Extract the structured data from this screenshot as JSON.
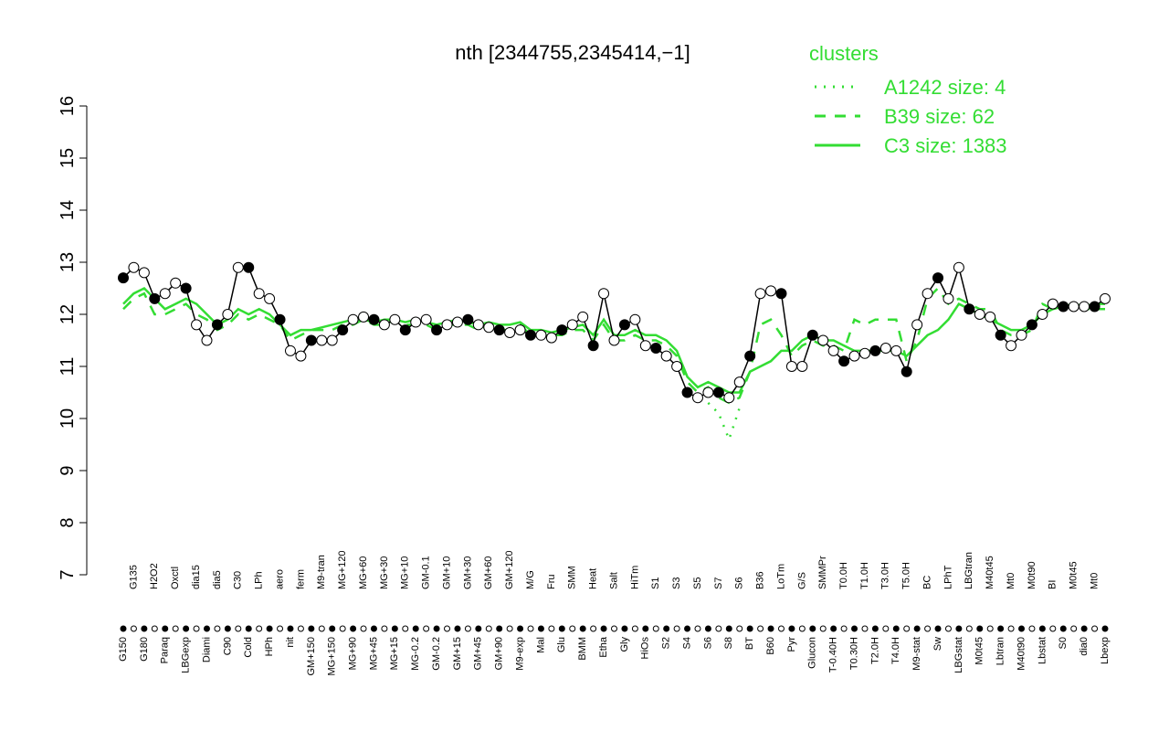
{
  "chart_data": {
    "type": "line",
    "title": "nth [2344755,2345414,−1]",
    "legend_title": "clusters",
    "legend_position": "top-right",
    "ylim": [
      7,
      16
    ],
    "yticks": [
      7,
      8,
      9,
      10,
      11,
      12,
      13,
      14,
      15,
      16
    ],
    "categories": [
      "G150",
      "G135",
      "G180",
      "H2O2",
      "Paraq",
      "Oxctl",
      "LBGexp",
      "dia15",
      "Diami",
      "dia5",
      "C90",
      "C30",
      "Cold",
      "LPh",
      "HPh",
      "aero",
      "nit",
      "ferm",
      "GM+150",
      "M9-tran",
      "MG+150",
      "MG+120",
      "MG+90",
      "MG+60",
      "MG+45",
      "MG+30",
      "MG+15",
      "MG+10",
      "MG-0.2",
      "GM-0.1",
      "GM-0.2",
      "GM+10",
      "GM+15",
      "GM+30",
      "GM+45",
      "GM+60",
      "GM+90",
      "GM+120",
      "M9-exp",
      "M/G",
      "Mal",
      "Fru",
      "Glu",
      "SMM",
      "BMM",
      "Heat",
      "Etha",
      "Salt",
      "Gly",
      "HiTm",
      "HiOs",
      "S1",
      "S2",
      "S3",
      "S4",
      "S5",
      "S6",
      "S7",
      "S8",
      "S6",
      "BT",
      "B36",
      "B60",
      "LoTm",
      "Pyr",
      "G/S",
      "Glucon",
      "SMMPr",
      "T-0.40H",
      "T0.0H",
      "T0.30H",
      "T1.0H",
      "T2.0H",
      "T3.0H",
      "T4.0H",
      "T5.0H",
      "M9-stat",
      "BC",
      "Sw",
      "LPhT",
      "LBGstat",
      "LBGtran",
      "M0t45",
      "M40t45",
      "Lbtran",
      "Mt0",
      "M40t90",
      "M0t90",
      "Lbstat",
      "BI",
      "S0",
      "M0t45",
      "dia0",
      "Mt0",
      "Lbexp"
    ],
    "points": {
      "color": "#000000",
      "values": [
        12.7,
        12.9,
        12.8,
        12.3,
        12.4,
        12.6,
        12.5,
        11.8,
        11.5,
        11.8,
        12.0,
        12.9,
        12.9,
        12.4,
        12.3,
        11.9,
        11.3,
        11.2,
        11.5,
        11.5,
        11.5,
        11.7,
        11.9,
        11.95,
        11.9,
        11.8,
        11.9,
        11.7,
        11.85,
        11.9,
        11.7,
        11.8,
        11.85,
        11.9,
        11.8,
        11.75,
        11.7,
        11.65,
        11.7,
        11.6,
        11.6,
        11.55,
        11.7,
        11.8,
        11.95,
        11.4,
        12.4,
        11.5,
        11.8,
        11.9,
        11.4,
        11.35,
        11.2,
        11.0,
        10.5,
        10.4,
        10.5,
        10.5,
        10.4,
        10.7,
        11.2,
        12.4,
        12.45,
        12.4,
        11.0,
        11.0,
        11.6,
        11.5,
        11.3,
        11.1,
        11.2,
        11.25,
        11.3,
        11.35,
        11.3,
        10.9,
        11.8,
        12.4,
        12.7,
        12.3,
        12.9,
        12.1,
        12.0,
        11.95,
        11.6,
        11.4,
        11.6,
        11.8,
        12.0,
        12.2,
        12.15,
        12.15,
        12.15,
        12.15,
        12.3
      ]
    },
    "series": [
      {
        "name": "A1242 size: 4",
        "color": "#33dd33",
        "line_style": "dotted",
        "values": [
          null,
          null,
          null,
          null,
          null,
          null,
          null,
          null,
          null,
          null,
          null,
          null,
          null,
          null,
          null,
          null,
          null,
          null,
          null,
          null,
          null,
          null,
          null,
          null,
          null,
          null,
          null,
          null,
          null,
          null,
          null,
          null,
          null,
          null,
          null,
          null,
          null,
          null,
          null,
          null,
          null,
          null,
          null,
          null,
          null,
          null,
          null,
          null,
          null,
          null,
          null,
          null,
          null,
          null,
          null,
          null,
          10.3,
          10.1,
          9.6,
          10.2,
          null,
          null,
          null,
          null,
          null,
          null,
          null,
          null,
          null,
          null,
          null,
          null,
          null,
          null,
          null,
          null,
          null,
          null,
          null,
          null,
          null,
          null,
          null,
          null,
          null,
          null,
          null,
          null,
          null,
          null,
          null,
          null,
          null,
          null,
          null
        ]
      },
      {
        "name": "B39 size: 62",
        "color": "#33dd33",
        "line_style": "dashed",
        "values": [
          12.1,
          12.3,
          12.4,
          12.0,
          12.0,
          12.1,
          12.2,
          12.0,
          11.9,
          11.7,
          11.8,
          12.0,
          11.9,
          12.0,
          11.9,
          11.8,
          11.5,
          11.6,
          11.7,
          11.7,
          11.7,
          11.8,
          11.8,
          11.9,
          11.8,
          11.8,
          11.9,
          11.8,
          11.8,
          11.8,
          11.7,
          11.8,
          11.8,
          11.8,
          11.7,
          11.8,
          11.7,
          11.7,
          11.8,
          11.6,
          11.6,
          11.6,
          11.6,
          11.7,
          11.7,
          11.5,
          11.8,
          11.5,
          11.5,
          11.6,
          11.5,
          11.5,
          11.4,
          11.2,
          10.7,
          10.5,
          10.6,
          10.4,
          10.3,
          10.4,
          10.9,
          11.8,
          11.9,
          11.6,
          11.2,
          11.4,
          11.5,
          11.4,
          11.4,
          11.3,
          11.9,
          11.8,
          11.9,
          11.9,
          11.9,
          11.1,
          11.5,
          12.3,
          12.5,
          12.2,
          12.3,
          12.2,
          12.1,
          12.1,
          11.7,
          11.6,
          11.6,
          11.7,
          12.2,
          12.1,
          12.1,
          12.2,
          12.1,
          12.1,
          12.1
        ]
      },
      {
        "name": "C3 size: 1383",
        "color": "#33dd33",
        "line_style": "solid",
        "values": [
          12.2,
          12.4,
          12.5,
          12.3,
          12.1,
          12.2,
          12.3,
          12.2,
          12.0,
          11.8,
          11.9,
          12.1,
          12.0,
          12.1,
          12.0,
          11.8,
          11.6,
          11.7,
          11.7,
          11.75,
          11.8,
          11.85,
          11.9,
          11.9,
          11.85,
          11.9,
          11.9,
          11.85,
          11.9,
          11.85,
          11.8,
          11.85,
          11.9,
          11.85,
          11.8,
          11.85,
          11.8,
          11.8,
          11.85,
          11.7,
          11.7,
          11.65,
          11.7,
          11.75,
          11.8,
          11.6,
          11.9,
          11.6,
          11.6,
          11.7,
          11.6,
          11.6,
          11.5,
          11.3,
          10.8,
          10.6,
          10.7,
          10.6,
          10.5,
          10.5,
          10.9,
          11.0,
          11.1,
          11.3,
          11.3,
          11.5,
          11.6,
          11.5,
          11.5,
          11.4,
          11.3,
          11.3,
          11.3,
          11.3,
          11.3,
          11.2,
          11.4,
          11.6,
          11.7,
          11.9,
          12.2,
          12.1,
          12.0,
          11.9,
          11.8,
          11.7,
          11.7,
          11.8,
          12.0,
          12.1,
          12.15,
          12.2,
          12.15,
          12.2,
          12.2
        ]
      }
    ]
  }
}
